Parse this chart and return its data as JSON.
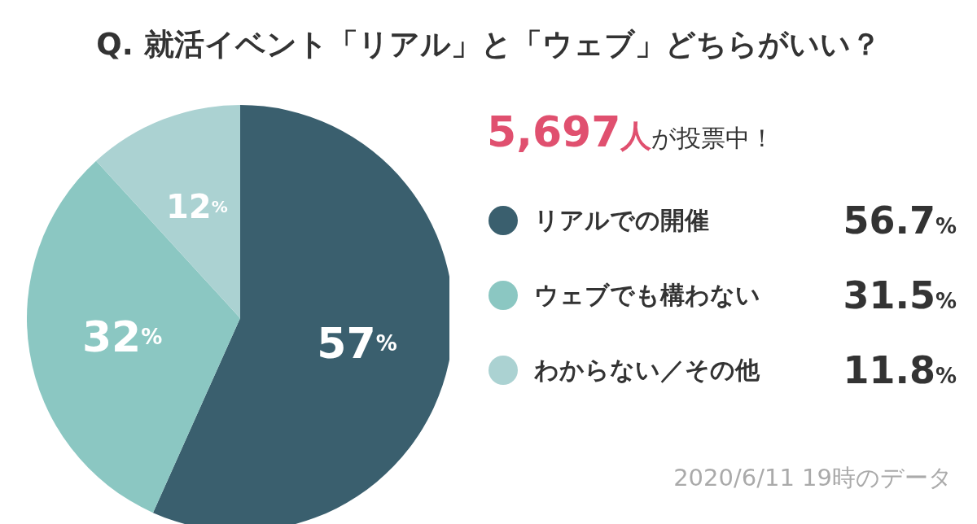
{
  "chart_data": {
    "type": "pie",
    "title": "Q. 就活イベント「リアル」と「ウェブ」どちらがいい？",
    "subtitle": "5,697人が投票中！",
    "categories": [
      "リアルでの開催",
      "ウェブでも構わない",
      "わからない／その他"
    ],
    "values": [
      56.7,
      31.5,
      11.8
    ],
    "colors": [
      "#3a5f6e",
      "#8bc7c2",
      "#abd2d2"
    ],
    "value_labels": [
      "57%",
      "32%",
      "12%"
    ],
    "legend": "right",
    "annotations": [
      {
        "text": "56.7%",
        "x": "リアルでの開催"
      },
      {
        "text": "31.5%",
        "x": "ウェブでも構わない"
      },
      {
        "text": "11.8%",
        "x": "わからない／その他"
      },
      "2020/6/11 19時のデータ"
    ]
  }
}
